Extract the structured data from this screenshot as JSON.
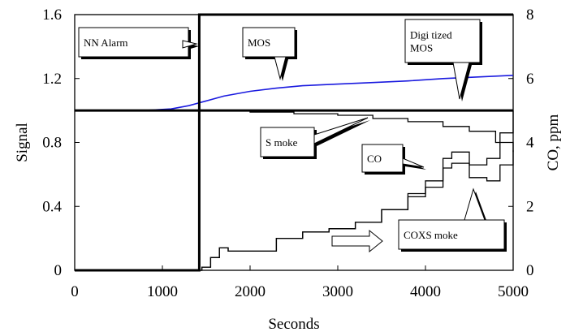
{
  "chart_data": {
    "type": "line",
    "title": "",
    "xlabel": "Seconds",
    "ylabel_left": "Signal",
    "ylabel_right": "CO, ppm",
    "xlim": [
      0,
      5000
    ],
    "ylim_left": [
      0,
      1.6
    ],
    "ylim_right": [
      0,
      8
    ],
    "grid": false,
    "x_ticks": [
      "0",
      "1000",
      "2000",
      "3000",
      "4000",
      "5000"
    ],
    "y_left_ticks": [
      "0",
      "0.4",
      "0.8",
      "1.2",
      "1.6"
    ],
    "y_right_ticks": [
      "0",
      "2",
      "4",
      "6",
      "8"
    ],
    "series": [
      {
        "name": "MOS",
        "color": "#1a1adf",
        "axis": "left",
        "x": [
          0,
          800,
          1100,
          1300,
          1500,
          1700,
          2000,
          2300,
          2600,
          3000,
          3400,
          3800,
          4200,
          4600,
          5000
        ],
        "y": [
          1.0,
          1.0,
          1.01,
          1.03,
          1.06,
          1.09,
          1.12,
          1.14,
          1.155,
          1.165,
          1.175,
          1.185,
          1.2,
          1.21,
          1.22
        ]
      },
      {
        "name": "Digitized MOS",
        "color": "#000000",
        "axis": "left",
        "x": [
          0,
          5000
        ],
        "y": [
          1.0,
          1.0
        ]
      },
      {
        "name": "NN Alarm",
        "color": "#000000",
        "axis": "left",
        "x": [
          0,
          1420,
          1420,
          5000
        ],
        "y": [
          0,
          0,
          1.6,
          1.6
        ]
      },
      {
        "name": "Smoke",
        "color": "#000000",
        "axis": "left",
        "x": [
          0,
          1500,
          2000,
          2500,
          3000,
          3400,
          3800,
          4200,
          4500,
          4800,
          5000
        ],
        "y": [
          1.0,
          1.0,
          0.99,
          0.98,
          0.97,
          0.95,
          0.93,
          0.9,
          0.87,
          0.8,
          0.74
        ]
      },
      {
        "name": "CO",
        "color": "#000000",
        "axis": "right",
        "x": [
          0,
          1400,
          1450,
          1550,
          1650,
          1750,
          2000,
          2300,
          2600,
          2900,
          3200,
          3500,
          3800,
          4000,
          4200,
          4300,
          4500,
          4700,
          4850,
          5000
        ],
        "y": [
          0,
          0,
          0.1,
          0.4,
          0.7,
          0.6,
          0.6,
          1.0,
          1.2,
          1.3,
          1.5,
          1.9,
          2.4,
          2.8,
          3.5,
          3.7,
          3.3,
          3.5,
          4.3,
          5.0
        ]
      },
      {
        "name": "COXSmoke",
        "color": "#000000",
        "axis": "left",
        "x": [
          0,
          1400,
          1450,
          1550,
          1650,
          1750,
          2000,
          2300,
          2600,
          2900,
          3200,
          3500,
          3800,
          4000,
          4200,
          4300,
          4500,
          4700,
          4850,
          5000
        ],
        "y": [
          0,
          0,
          0.02,
          0.08,
          0.14,
          0.12,
          0.12,
          0.2,
          0.24,
          0.26,
          0.3,
          0.38,
          0.46,
          0.52,
          0.64,
          0.67,
          0.58,
          0.56,
          0.66,
          0.75
        ]
      }
    ],
    "annotations": [
      {
        "text": "NN Alarm"
      },
      {
        "text": "MOS"
      },
      {
        "text": "Digi tized\nMOS"
      },
      {
        "text": "S moke"
      },
      {
        "text": "CO"
      },
      {
        "text": "COXS moke"
      }
    ]
  }
}
